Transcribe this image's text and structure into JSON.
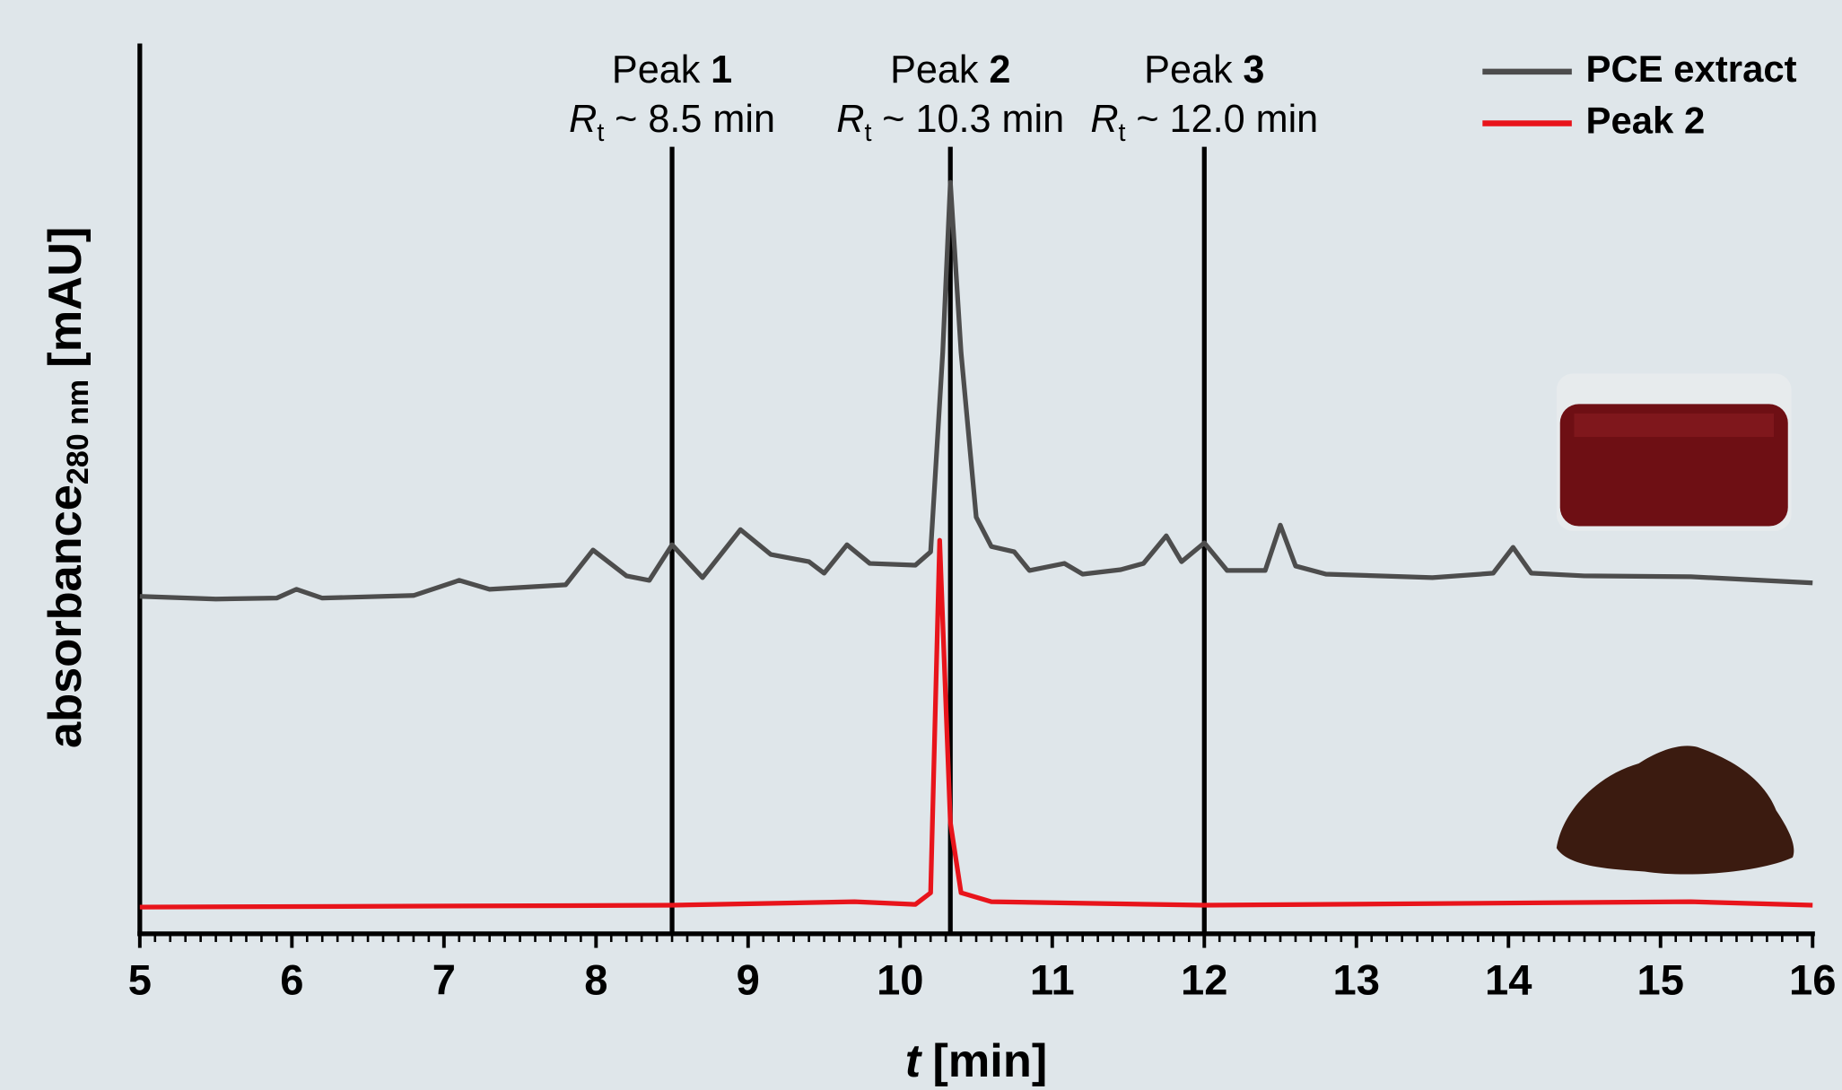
{
  "chart_data": {
    "type": "line",
    "xlabel": {
      "symbol": "t",
      "unit": "[min]"
    },
    "ylabel": {
      "text": "absorbance",
      "sub": "280 nm",
      "unit": "[mAU]"
    },
    "xlim": [
      5,
      16
    ],
    "xticks": [
      5,
      6,
      7,
      8,
      9,
      10,
      11,
      12,
      13,
      14,
      15,
      16
    ],
    "ylim": [
      0,
      100
    ],
    "legend": "top-right",
    "series": [
      {
        "name": "PCE extract",
        "color": "#4d4d4d",
        "x": [
          5.0,
          5.5,
          5.9,
          6.03,
          6.2,
          6.8,
          7.1,
          7.3,
          7.8,
          7.98,
          8.2,
          8.35,
          8.5,
          8.7,
          8.95,
          9.15,
          9.4,
          9.5,
          9.65,
          9.8,
          10.1,
          10.2,
          10.28,
          10.33,
          10.4,
          10.5,
          10.6,
          10.75,
          10.85,
          11.08,
          11.2,
          11.45,
          11.6,
          11.75,
          11.85,
          12.0,
          12.15,
          12.4,
          12.5,
          12.6,
          12.8,
          13.5,
          13.9,
          14.03,
          14.15,
          14.5,
          15.2,
          16.0
        ],
        "values": [
          37.9,
          37.6,
          37.7,
          38.7,
          37.7,
          38.0,
          39.7,
          38.7,
          39.2,
          43.1,
          40.2,
          39.7,
          43.7,
          40.0,
          45.4,
          42.6,
          41.8,
          40.5,
          43.7,
          41.6,
          41.4,
          42.9,
          65.3,
          84.4,
          65.3,
          46.8,
          43.5,
          42.9,
          40.8,
          41.6,
          40.4,
          40.9,
          41.6,
          44.7,
          41.8,
          43.9,
          40.8,
          40.8,
          45.9,
          41.3,
          40.4,
          40.0,
          40.5,
          43.4,
          40.5,
          40.2,
          40.1,
          39.4
        ]
      },
      {
        "name": "Peak 2",
        "color": "#e8141b",
        "x": [
          5.0,
          8.5,
          9.7,
          10.1,
          10.2,
          10.26,
          10.33,
          10.4,
          10.6,
          12.0,
          15.2,
          16.0
        ],
        "values": [
          3.0,
          3.2,
          3.6,
          3.3,
          4.6,
          44.2,
          12.5,
          4.6,
          3.6,
          3.2,
          3.6,
          3.2
        ]
      }
    ],
    "annotations": [
      {
        "x": 8.5,
        "label": "Peak",
        "number": "1",
        "rt_symbol": "R",
        "rt_sub": "t",
        "rt_text": "~ 8.5 min"
      },
      {
        "x": 10.33,
        "label": "Peak",
        "number": "2",
        "rt_symbol": "R",
        "rt_sub": "t",
        "rt_text": "~ 10.3 min"
      },
      {
        "x": 12.0,
        "label": "Peak",
        "number": "3",
        "rt_symbol": "R",
        "rt_sub": "t",
        "rt_text": "~ 12.0 min"
      }
    ]
  }
}
